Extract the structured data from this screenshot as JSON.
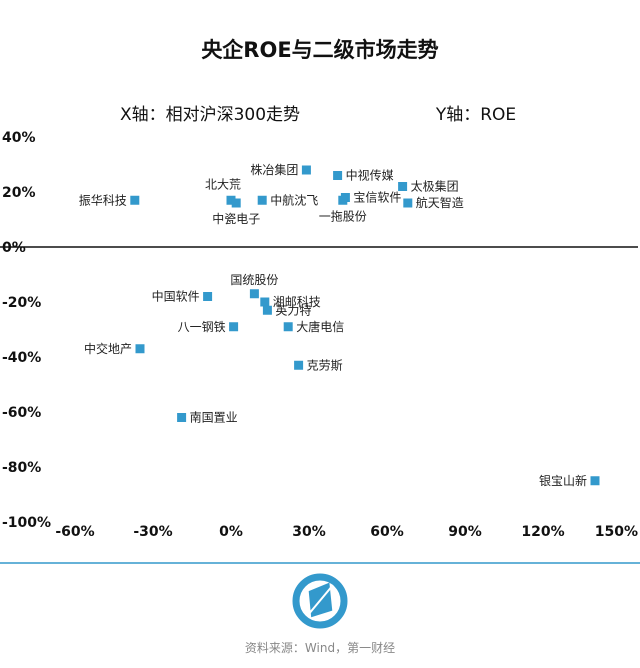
{
  "chart_data": {
    "type": "scatter",
    "title": "央企ROE与二级市场走势",
    "x_axis_note": "X轴：相对沪深300走势",
    "y_axis_note": "Y轴：ROE",
    "xlim": [
      -70,
      155
    ],
    "ylim": [
      -100,
      40
    ],
    "x_ticks": [
      {
        "value": -60,
        "label": "-60%"
      },
      {
        "value": -30,
        "label": "-30%"
      },
      {
        "value": 0,
        "label": "0%"
      },
      {
        "value": 30,
        "label": "30%"
      },
      {
        "value": 60,
        "label": "60%"
      },
      {
        "value": 90,
        "label": "90%"
      },
      {
        "value": 120,
        "label": "120%"
      },
      {
        "value": 150,
        "label": "150%"
      }
    ],
    "y_ticks": [
      {
        "value": 40,
        "label": "40%"
      },
      {
        "value": 20,
        "label": "20%"
      },
      {
        "value": 0,
        "label": "0%"
      },
      {
        "value": -20,
        "label": "-20%"
      },
      {
        "value": -40,
        "label": "-40%"
      },
      {
        "value": -60,
        "label": "-60%"
      },
      {
        "value": -80,
        "label": "-80%"
      },
      {
        "value": -100,
        "label": "-100%"
      }
    ],
    "grid": false,
    "marker_color": "#3399cc",
    "points": [
      {
        "label": "振华科技",
        "x": -37,
        "y": 17,
        "label_pos": "left"
      },
      {
        "label": "北大荒",
        "x": 0,
        "y": 17,
        "label_pos": "above-left"
      },
      {
        "label": "中瓷电子",
        "x": 2,
        "y": 16,
        "label_pos": "below"
      },
      {
        "label": "中航沈飞",
        "x": 12,
        "y": 17,
        "label_pos": "right"
      },
      {
        "label": "株冶集团",
        "x": 29,
        "y": 28,
        "label_pos": "left"
      },
      {
        "label": "中视传媒",
        "x": 41,
        "y": 26,
        "label_pos": "right"
      },
      {
        "label": "宝信软件",
        "x": 44,
        "y": 18,
        "label_pos": "right"
      },
      {
        "label": "一拖股份",
        "x": 43,
        "y": 17,
        "label_pos": "below"
      },
      {
        "label": "太极集团",
        "x": 66,
        "y": 22,
        "label_pos": "right"
      },
      {
        "label": "航天智造",
        "x": 68,
        "y": 16,
        "label_pos": "right"
      },
      {
        "label": "国统股份",
        "x": 9,
        "y": -17,
        "label_pos": "above"
      },
      {
        "label": "中国软件",
        "x": -9,
        "y": -18,
        "label_pos": "left"
      },
      {
        "label": "湘邮科技",
        "x": 13,
        "y": -20,
        "label_pos": "right"
      },
      {
        "label": "英力特",
        "x": 14,
        "y": -23,
        "label_pos": "right"
      },
      {
        "label": "八一钢铁",
        "x": 1,
        "y": -29,
        "label_pos": "left"
      },
      {
        "label": "大唐电信",
        "x": 22,
        "y": -29,
        "label_pos": "right"
      },
      {
        "label": "中交地产",
        "x": -35,
        "y": -37,
        "label_pos": "left"
      },
      {
        "label": "克劳斯",
        "x": 26,
        "y": -43,
        "label_pos": "right"
      },
      {
        "label": "南国置业",
        "x": -19,
        "y": -62,
        "label_pos": "right"
      },
      {
        "label": "银宝山新",
        "x": 140,
        "y": -85,
        "label_pos": "left"
      }
    ]
  },
  "source_text": "资料来源：Wind，第一财经",
  "logo_color": "#3399cc"
}
